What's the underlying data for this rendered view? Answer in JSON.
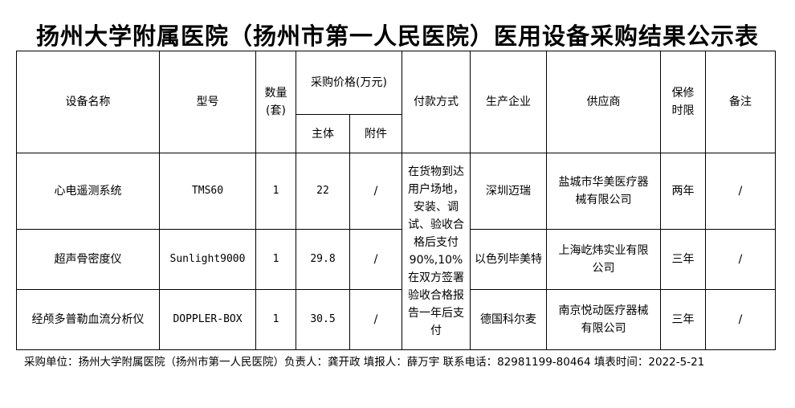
{
  "title": "扬州大学附属医院（扬州市第一人民医院）医用设备采购结果公示表",
  "headers": {
    "name": "设备名称",
    "model": "型号",
    "qty": "数量(套)",
    "price": "采购价格(万元)",
    "main": "主体",
    "attach": "附件",
    "payment": "付款方式",
    "manufacturer": "生产企业",
    "supplier": "供应商",
    "warranty": "保修时限",
    "note": "备注"
  },
  "payment_terms": "在货物到达用户场地，安装、调试、验收合格后支付 90%,10%在双方签署验收合格报告一年后支付",
  "rows": [
    {
      "name": "心电遥测系统",
      "model": "TMS60",
      "qty": "1",
      "main": "22",
      "attach": "/",
      "manufacturer": "深圳迈瑞",
      "supplier": "盐城市华美医疗器械有限公司",
      "warranty": "两年",
      "note": "/"
    },
    {
      "name": "超声骨密度仪",
      "model": "Sunlight9000",
      "qty": "1",
      "main": "29.8",
      "attach": "/",
      "manufacturer": "以色列毕美特",
      "supplier": "上海屹炜实业有限公司",
      "warranty": "三年",
      "note": "/"
    },
    {
      "name": "经颅多普勒血流分析仪",
      "model": "DOPPLER-BOX",
      "qty": "1",
      "main": "30.5",
      "attach": "/",
      "manufacturer": "德国科尔麦",
      "supplier": "南京悦动医疗器械有限公司",
      "warranty": "三年",
      "note": "/"
    }
  ],
  "footer": "采购单位：扬州大学附属医院（扬州市第一人民医院）负责人：龚开政  填报人：薛万宇  联系电话：82981199-80464  填表时间：2022-5-21"
}
